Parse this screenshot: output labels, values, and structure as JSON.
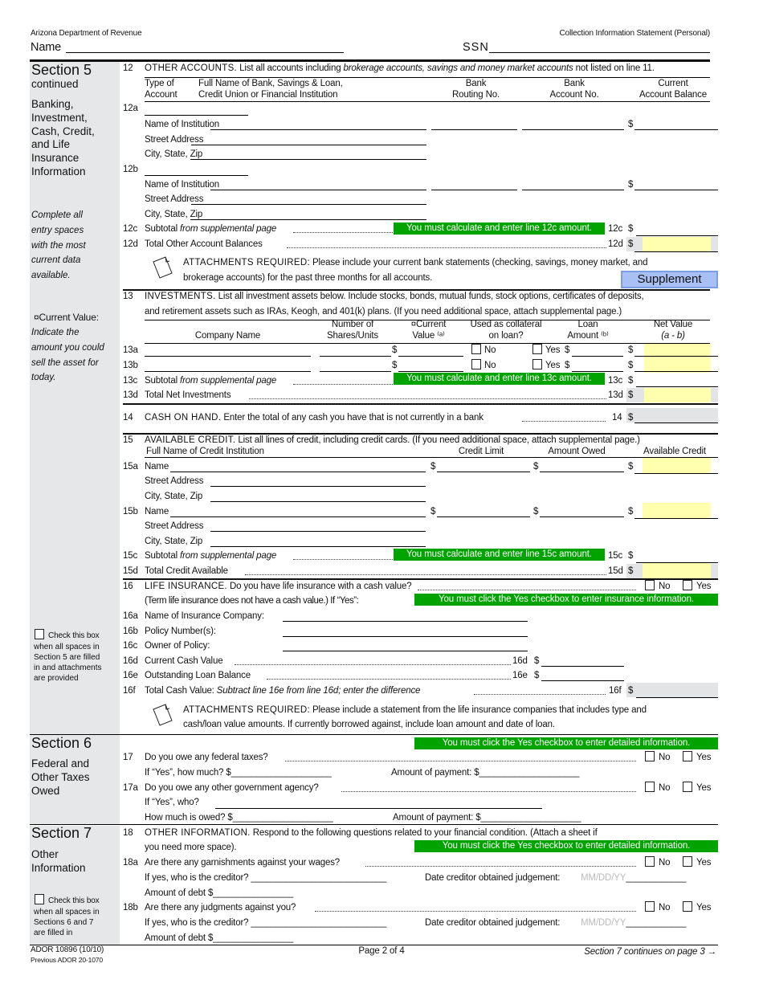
{
  "header": {
    "agency": "Arizona Department of Revenue",
    "form_title": "Collection Information Statement (Personal)",
    "name_label": "Name",
    "ssn_label": "SSN"
  },
  "common": {
    "dollar": "$",
    "no": "No",
    "yes": "Yes",
    "name_of_institution": "Name of Institution",
    "street_address": "Street Address",
    "city_state_zip": "City, State, Zip",
    "name": "Name",
    "subtotal": "Subtotal ",
    "from_supplemental": "from supplemental page",
    "attachments_required": "ATTACHMENTS REQUIRED:"
  },
  "colors": {
    "notice_green": "#00a300",
    "calc_yellow": "#ffffad",
    "sidebar_gray": "#e6e7e8",
    "button_blue": "#a9c0f5"
  },
  "sidebar": {
    "s5": {
      "title": "Section 5",
      "continued": "continued",
      "subtitle": "Banking,\nInvestment,\nCash, Credit,\nand Life\nInsurance\nInformation",
      "note": "Complete all\nentry spaces\nwith the most\ncurrent data\navailable.",
      "cv_label": "¤Current Value:",
      "cv_note": "Indicate the\namount you could\nsell the asset for\ntoday.",
      "check_first": "Check this box",
      "check_rest": "when all spaces in\nSection 5 are filled\nin and attachments\nare provided"
    },
    "s6": {
      "title": "Section 6",
      "subtitle": "Federal and\nOther Taxes\nOwed"
    },
    "s7": {
      "title": "Section 7",
      "subtitle": "Other\nInformation",
      "check_first": "Check this box",
      "check_rest": "when all spaces in\nSections 6 and 7\nare filled in"
    }
  },
  "l12": {
    "num": "12",
    "caps": "OTHER ACCOUNTS.",
    "text_a": "List all accounts including ",
    "text_em": "brokerage accounts, savings and money market accounts",
    "text_b": " not listed on line 11.",
    "headers": [
      "Type of\nAccount",
      "Full Name of Bank, Savings & Loan,\nCredit Union or Financial Institution",
      "Bank\nRouting No.",
      "Bank\nAccount No.",
      "Current\nAccount Balance"
    ],
    "row_a": "12a",
    "row_b": "12b",
    "subtotal_num": "12c",
    "subtotal_notice": "You must calculate and enter line 12c amount.",
    "total_num": "12d",
    "total_label": "Total Other Account Balances",
    "attach_text": "Please include your current bank statements (checking, savings, money market, and",
    "attach_text2": "brokerage accounts) for the past three months for all accounts.",
    "supplement_button": "Supplement"
  },
  "l13": {
    "num": "13",
    "caps": "INVESTMENTS.",
    "text": "List all investment assets below.  Include stocks, bonds, mutual funds, stock options, certificates of deposits,",
    "text2": "and retirement assets such as IRAs, Keogh, and 401(k) plans.  (If you need additional space, attach supplemental page.)",
    "headers": [
      "Company Name",
      "Number of\nShares/Units",
      "¤Current\nValue ⁽ᵃ⁾",
      "Used as collateral\non loan?",
      "Loan\nAmount ⁽ᵇ⁾",
      "Net Value"
    ],
    "net_value_sub": "(a - b)",
    "row_a": "13a",
    "row_b": "13b",
    "subtotal_num": "13c",
    "subtotal_notice": "You must calculate and enter line 13c amount.",
    "total_num": "13d",
    "total_label": "Total Net Investments"
  },
  "l14": {
    "num": "14",
    "caps": "CASH ON HAND.",
    "text": "Enter the total of any cash you have that is not currently in a bank"
  },
  "l15": {
    "num": "15",
    "caps": "AVAILABLE CREDIT.",
    "text": "List all lines of credit, including credit cards.  (If you need additional space, attach supplemental page.)",
    "headers": [
      "Full Name of Credit Institution",
      "Credit Limit",
      "Amount Owed",
      "Available Credit"
    ],
    "row_a": "15a",
    "row_b": "15b",
    "subtotal_num": "15c",
    "subtotal_notice": "You must calculate and enter line 15c amount.",
    "total_num": "15d",
    "total_label": "Total Credit Available"
  },
  "l16": {
    "num": "16",
    "caps": "LIFE INSURANCE.",
    "text": "Do you have life insurance with a cash value?",
    "text2": "(Term life insurance does not have a cash value.)  If “Yes”:",
    "notice": "You must click the Yes checkbox to enter insurance information.",
    "a_num": "16a",
    "a_label": "Name of Insurance Company:",
    "b_num": "16b",
    "b_label": "Policy Number(s):",
    "c_num": "16c",
    "c_label": "Owner of Policy:",
    "d_num": "16d",
    "d_label": "Current Cash Value",
    "e_num": "16e",
    "e_label": "Outstanding Loan Balance",
    "f_num": "16f",
    "f_label": "Total Cash Value:",
    "f_em": "Subtract line 16e from line 16d; enter the difference",
    "attach_text": "Please include a statement from the life insurance companies that includes type and",
    "attach_text2": "cash/loan value amounts.  If currently borrowed against, include loan amount and date of loan."
  },
  "s6": {
    "notice": "You must click the Yes checkbox to enter detailed information.",
    "q17_num": "17",
    "q17": "Do you owe any federal taxes?",
    "q17_how_much": "If “Yes”, how much?  $____________________",
    "q17_payment": "Amount of payment:  $____________________",
    "q17a_num": "17a",
    "q17a": "Do you owe any other government agency?",
    "q17a_who": "If “Yes”, who?",
    "q17a_owed": "How much is owed?  $____________________",
    "q17a_payment": "Amount of payment:  $____________________"
  },
  "s7": {
    "q18_num": "18",
    "q18_caps": "OTHER INFORMATION.",
    "q18_text": "Respond to the following questions related to your financial condition.  (Attach a sheet if",
    "q18_text2": "you need more space).",
    "notice": "You must click the Yes checkbox to enter detailed information.",
    "q18a_num": "18a",
    "q18a": "Are there any garnishments against your wages?",
    "q18b_num": "18b",
    "q18b": "Are there any judgments against you?",
    "creditor": "If yes, who is the creditor?  ___________________________",
    "date_label": "Date creditor obtained judgement:",
    "date_placeholder": "MM/DD/YY",
    "date_blank": "____________",
    "debt": "Amount of debt $________________"
  },
  "footer": {
    "form_number": "ADOR 10896 (10/10)",
    "previous": "Previous ADOR 20-1070",
    "page": "Page 2 of 4",
    "continues": "Section 7 continues on page 3",
    "arrow": "→"
  }
}
